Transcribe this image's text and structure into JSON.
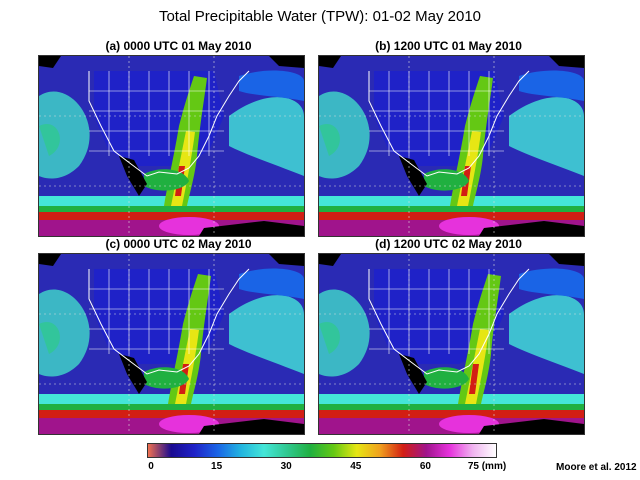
{
  "title": "Total Precipitable Water (TPW): 01-02 May 2010",
  "panels": [
    {
      "label": "(a) 0000 UTC 01 May 2010",
      "moist_band": "gulf-and-mississippi-plume"
    },
    {
      "label": "(b) 1200 UTC 01 May 2010",
      "moist_band": "narrow-north-south-plume"
    },
    {
      "label": "(c) 0000 UTC 02 May 2010",
      "moist_band": "mississippi-valley-plume"
    },
    {
      "label": "(d) 1200 UTC 02 May 2010",
      "moist_band": "plume-shifted-east"
    }
  ],
  "colorbar": {
    "ticks": [
      "0",
      "15",
      "30",
      "45",
      "60",
      "75 (mm)"
    ],
    "tick_values": [
      0,
      15,
      30,
      45,
      60,
      75
    ],
    "range": [
      0,
      75
    ],
    "colors": [
      "#f07050",
      "#1a0a90",
      "#1f22c8",
      "#1a64e6",
      "#22b4e0",
      "#44e6d8",
      "#30c890",
      "#20b040",
      "#64c814",
      "#e6e614",
      "#f0a01e",
      "#d21e14",
      "#a0148c",
      "#e632dc",
      "#f0b4f0",
      "#ffffff"
    ]
  },
  "credit": "Moore et al. 2012",
  "colors": {
    "ocean_dry": "#2a2ab4",
    "ocean_moist": "#40d0c8",
    "land_mask": "#000000",
    "borders": "#ffffff"
  }
}
